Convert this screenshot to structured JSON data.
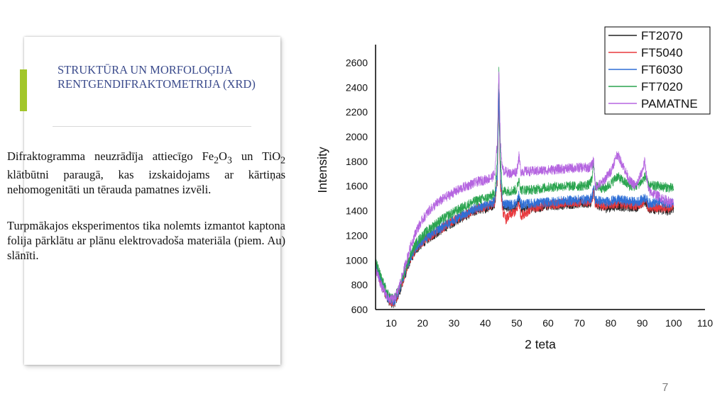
{
  "slide": {
    "title": "STRUKTŪRA UN MORFOLOĢIJA RENTGENDIFRAKTOMETRIJA (XRD)",
    "p1": {
      "t1": "Difraktogramma neuzrādīja attiecīgo Fe",
      "s1": "2",
      "t2": "O",
      "s2": "3",
      "t3": " un TiO",
      "s3": "2",
      "t4": " klātbūtni paraugā, kas izskaidojams ar kārtiņas nehomogenitāti un tērauda pamatnes izvēli."
    },
    "p2": "Turpmākajos eksperimentos tika nolemts izmantot kaptona folija pārklātu ar plānu elektrovadoša materiāla (piem. Au) slānīti.",
    "page_number": "7",
    "accent_color": "#a2c62a",
    "title_color": "#3b4b8c"
  },
  "chart_data": {
    "type": "line",
    "title": "",
    "xlabel": "2 teta",
    "ylabel": "Intensity",
    "xlim": [
      5,
      110
    ],
    "ylim": [
      600,
      2700
    ],
    "xticks": [
      10,
      20,
      30,
      40,
      50,
      60,
      70,
      80,
      90,
      100,
      110
    ],
    "yticks": [
      600,
      800,
      1000,
      1200,
      1400,
      1600,
      1800,
      2000,
      2200,
      2400,
      2600
    ],
    "grid": false,
    "legend_position": "top-right",
    "series": [
      {
        "name": "FT2070",
        "color": "#222222",
        "noise": 40,
        "points": [
          [
            5,
            960
          ],
          [
            7,
            800
          ],
          [
            9,
            680
          ],
          [
            10,
            650
          ],
          [
            11,
            655
          ],
          [
            12,
            700
          ],
          [
            14,
            850
          ],
          [
            16,
            1000
          ],
          [
            18,
            1090
          ],
          [
            20,
            1140
          ],
          [
            22,
            1180
          ],
          [
            25,
            1230
          ],
          [
            28,
            1280
          ],
          [
            30,
            1310
          ],
          [
            33,
            1350
          ],
          [
            36,
            1390
          ],
          [
            38,
            1410
          ],
          [
            40,
            1420
          ],
          [
            42,
            1440
          ],
          [
            43,
            1460
          ],
          [
            43.8,
            1650
          ],
          [
            44.3,
            2400
          ],
          [
            44.8,
            1650
          ],
          [
            45.5,
            1440
          ],
          [
            48,
            1420
          ],
          [
            50,
            1430
          ],
          [
            50.7,
            1500
          ],
          [
            51.3,
            1420
          ],
          [
            55,
            1420
          ],
          [
            60,
            1440
          ],
          [
            65,
            1450
          ],
          [
            70,
            1460
          ],
          [
            73,
            1460
          ],
          [
            74,
            1480
          ],
          [
            74.5,
            1560
          ],
          [
            75,
            1460
          ],
          [
            78,
            1420
          ],
          [
            80,
            1430
          ],
          [
            82,
            1440
          ],
          [
            85,
            1430
          ],
          [
            88,
            1430
          ],
          [
            90,
            1460
          ],
          [
            91,
            1480
          ],
          [
            92,
            1420
          ],
          [
            95,
            1410
          ],
          [
            98,
            1400
          ],
          [
            100,
            1420
          ]
        ]
      },
      {
        "name": "FT5040",
        "color": "#e8383d",
        "noise": 40,
        "points": [
          [
            5,
            950
          ],
          [
            7,
            800
          ],
          [
            9,
            690
          ],
          [
            10,
            660
          ],
          [
            11,
            665
          ],
          [
            12,
            710
          ],
          [
            14,
            860
          ],
          [
            16,
            1010
          ],
          [
            18,
            1100
          ],
          [
            20,
            1150
          ],
          [
            22,
            1190
          ],
          [
            25,
            1240
          ],
          [
            28,
            1290
          ],
          [
            30,
            1320
          ],
          [
            33,
            1360
          ],
          [
            36,
            1400
          ],
          [
            38,
            1420
          ],
          [
            40,
            1430
          ],
          [
            42,
            1450
          ],
          [
            43,
            1470
          ],
          [
            43.8,
            1650
          ],
          [
            44.3,
            2300
          ],
          [
            44.8,
            1600
          ],
          [
            45.5,
            1400
          ],
          [
            46.5,
            1330
          ],
          [
            48,
            1370
          ],
          [
            50,
            1400
          ],
          [
            50.7,
            1470
          ],
          [
            51.3,
            1360
          ],
          [
            55,
            1420
          ],
          [
            60,
            1450
          ],
          [
            65,
            1460
          ],
          [
            70,
            1470
          ],
          [
            73,
            1470
          ],
          [
            74,
            1490
          ],
          [
            74.5,
            1560
          ],
          [
            75,
            1460
          ],
          [
            78,
            1440
          ],
          [
            80,
            1450
          ],
          [
            82,
            1460
          ],
          [
            85,
            1450
          ],
          [
            88,
            1440
          ],
          [
            90,
            1460
          ],
          [
            91,
            1480
          ],
          [
            92,
            1420
          ],
          [
            95,
            1430
          ],
          [
            98,
            1420
          ],
          [
            100,
            1440
          ]
        ]
      },
      {
        "name": "FT6030",
        "color": "#2f6fd6",
        "noise": 40,
        "points": [
          [
            5,
            980
          ],
          [
            7,
            820
          ],
          [
            9,
            700
          ],
          [
            10,
            670
          ],
          [
            11,
            675
          ],
          [
            12,
            720
          ],
          [
            14,
            870
          ],
          [
            16,
            1020
          ],
          [
            18,
            1110
          ],
          [
            20,
            1160
          ],
          [
            22,
            1200
          ],
          [
            25,
            1250
          ],
          [
            28,
            1300
          ],
          [
            30,
            1330
          ],
          [
            33,
            1370
          ],
          [
            36,
            1410
          ],
          [
            38,
            1430
          ],
          [
            40,
            1440
          ],
          [
            42,
            1460
          ],
          [
            43,
            1480
          ],
          [
            43.8,
            1680
          ],
          [
            44.3,
            2350
          ],
          [
            44.8,
            1680
          ],
          [
            45.5,
            1460
          ],
          [
            48,
            1450
          ],
          [
            50,
            1460
          ],
          [
            50.7,
            1530
          ],
          [
            51.3,
            1450
          ],
          [
            55,
            1460
          ],
          [
            60,
            1470
          ],
          [
            65,
            1480
          ],
          [
            70,
            1490
          ],
          [
            73,
            1490
          ],
          [
            74,
            1510
          ],
          [
            74.5,
            1600
          ],
          [
            75,
            1490
          ],
          [
            78,
            1470
          ],
          [
            80,
            1480
          ],
          [
            82,
            1490
          ],
          [
            85,
            1480
          ],
          [
            88,
            1470
          ],
          [
            90,
            1490
          ],
          [
            91,
            1510
          ],
          [
            92,
            1460
          ],
          [
            95,
            1470
          ],
          [
            98,
            1460
          ],
          [
            100,
            1470
          ]
        ]
      },
      {
        "name": "FT7020",
        "color": "#2aa44f",
        "noise": 40,
        "points": [
          [
            5,
            990
          ],
          [
            7,
            840
          ],
          [
            9,
            720
          ],
          [
            10,
            690
          ],
          [
            11,
            695
          ],
          [
            12,
            740
          ],
          [
            14,
            890
          ],
          [
            16,
            1040
          ],
          [
            18,
            1140
          ],
          [
            20,
            1200
          ],
          [
            22,
            1250
          ],
          [
            25,
            1310
          ],
          [
            28,
            1360
          ],
          [
            30,
            1390
          ],
          [
            33,
            1430
          ],
          [
            36,
            1470
          ],
          [
            38,
            1490
          ],
          [
            40,
            1500
          ],
          [
            42,
            1520
          ],
          [
            43,
            1550
          ],
          [
            43.8,
            1800
          ],
          [
            44.3,
            2560
          ],
          [
            44.8,
            1800
          ],
          [
            45.5,
            1560
          ],
          [
            48,
            1560
          ],
          [
            50,
            1570
          ],
          [
            50.7,
            1660
          ],
          [
            51.3,
            1570
          ],
          [
            55,
            1570
          ],
          [
            60,
            1590
          ],
          [
            65,
            1600
          ],
          [
            70,
            1600
          ],
          [
            73,
            1610
          ],
          [
            74,
            1650
          ],
          [
            74.5,
            1800
          ],
          [
            75,
            1600
          ],
          [
            78,
            1580
          ],
          [
            80,
            1620
          ],
          [
            82,
            1680
          ],
          [
            84,
            1640
          ],
          [
            86,
            1600
          ],
          [
            88,
            1600
          ],
          [
            90,
            1640
          ],
          [
            91,
            1680
          ],
          [
            92,
            1600
          ],
          [
            95,
            1600
          ],
          [
            98,
            1590
          ],
          [
            100,
            1580
          ]
        ]
      },
      {
        "name": "PAMATNE",
        "color": "#b565e0",
        "noise": 40,
        "points": [
          [
            5,
            930
          ],
          [
            7,
            780
          ],
          [
            9,
            690
          ],
          [
            10,
            680
          ],
          [
            11,
            690
          ],
          [
            12,
            740
          ],
          [
            14,
            920
          ],
          [
            16,
            1100
          ],
          [
            18,
            1240
          ],
          [
            20,
            1330
          ],
          [
            22,
            1400
          ],
          [
            25,
            1470
          ],
          [
            28,
            1520
          ],
          [
            30,
            1550
          ],
          [
            33,
            1590
          ],
          [
            36,
            1620
          ],
          [
            38,
            1640
          ],
          [
            40,
            1650
          ],
          [
            42,
            1670
          ],
          [
            43,
            1700
          ],
          [
            43.8,
            1950
          ],
          [
            44.3,
            2560
          ],
          [
            44.8,
            1950
          ],
          [
            45.5,
            1730
          ],
          [
            48,
            1700
          ],
          [
            50,
            1720
          ],
          [
            50.7,
            1840
          ],
          [
            51.3,
            1720
          ],
          [
            55,
            1720
          ],
          [
            60,
            1730
          ],
          [
            65,
            1740
          ],
          [
            70,
            1750
          ],
          [
            73,
            1750
          ],
          [
            74,
            1770
          ],
          [
            74.5,
            1820
          ],
          [
            75,
            1600
          ],
          [
            77,
            1620
          ],
          [
            80,
            1720
          ],
          [
            82,
            1860
          ],
          [
            84,
            1760
          ],
          [
            86,
            1640
          ],
          [
            88,
            1600
          ],
          [
            90,
            1720
          ],
          [
            90.8,
            1800
          ],
          [
            92,
            1560
          ],
          [
            95,
            1520
          ],
          [
            98,
            1480
          ],
          [
            100,
            1460
          ]
        ]
      }
    ]
  }
}
